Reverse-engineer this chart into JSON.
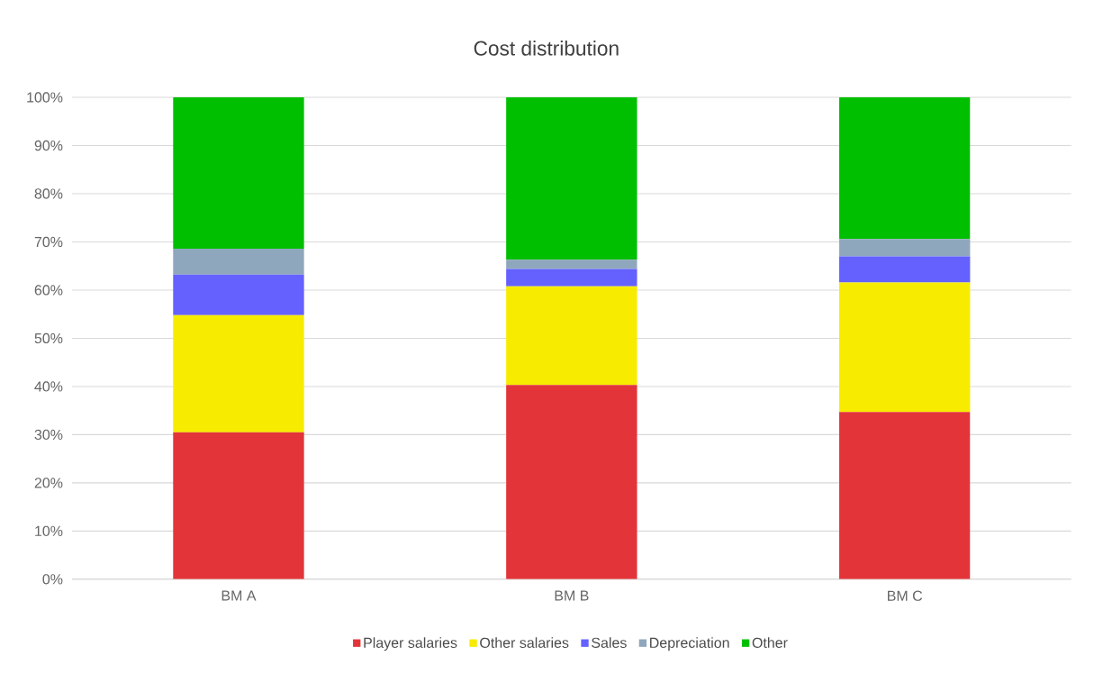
{
  "chart_data": {
    "type": "bar",
    "title": "Cost distribution",
    "stacked": true,
    "grid": "y",
    "legend": "bottom",
    "categories": [
      "BM A",
      "BM B",
      "BM C"
    ],
    "ylim": [
      0,
      100
    ],
    "yticks": [
      {
        "value": 0,
        "label": "0%"
      },
      {
        "value": 10,
        "label": "10%"
      },
      {
        "value": 20,
        "label": "20%"
      },
      {
        "value": 30,
        "label": "30%"
      },
      {
        "value": 40,
        "label": "40%"
      },
      {
        "value": 50,
        "label": "50%"
      },
      {
        "value": 60,
        "label": "60%"
      },
      {
        "value": 70,
        "label": "70%"
      },
      {
        "value": 80,
        "label": "80%"
      },
      {
        "value": 90,
        "label": "90%"
      },
      {
        "value": 100,
        "label": "100%"
      }
    ],
    "series": [
      {
        "name": "Player salaries",
        "color": "#e33539",
        "values": [
          30.5,
          40.3,
          34.7
        ]
      },
      {
        "name": "Other salaries",
        "color": "#f7ec00",
        "values": [
          24.3,
          20.5,
          26.9
        ]
      },
      {
        "name": "Sales",
        "color": "#6461ff",
        "values": [
          8.4,
          3.6,
          5.4
        ]
      },
      {
        "name": "Depreciation",
        "color": "#8fa7bd",
        "values": [
          5.4,
          1.9,
          3.6
        ]
      },
      {
        "name": "Other",
        "color": "#00bf00",
        "values": [
          31.4,
          33.7,
          29.4
        ]
      }
    ]
  }
}
